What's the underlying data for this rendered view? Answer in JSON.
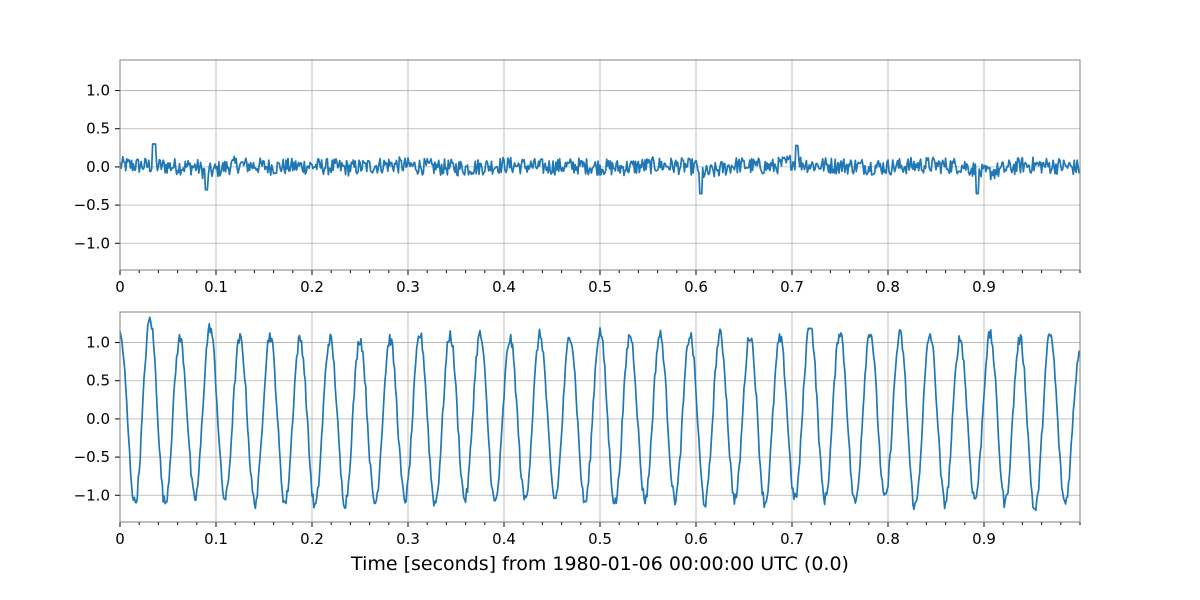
{
  "chart_data": [
    {
      "type": "line",
      "title": "",
      "xlabel": "",
      "ylabel": "",
      "xlim": [
        0,
        1.0
      ],
      "ylim": [
        -1.35,
        1.4
      ],
      "grid": true,
      "xticks": [
        0,
        0.1,
        0.2,
        0.3,
        0.4,
        0.5,
        0.6,
        0.7,
        0.8,
        0.9
      ],
      "xtick_labels": [
        "0",
        "0.1",
        "0.2",
        "0.3",
        "0.4",
        "0.5",
        "0.6",
        "0.7",
        "0.8",
        "0.9"
      ],
      "yticks": [
        -1.0,
        -0.5,
        0.0,
        0.5,
        1.0
      ],
      "ytick_labels": [
        "−1.0",
        "−0.5",
        "0.0",
        "0.5",
        "1.0"
      ],
      "series": [
        {
          "color": "#1f77b4",
          "x": [
            0,
            0.04,
            0.08,
            0.09,
            0.12,
            0.16,
            0.2,
            0.24,
            0.28,
            0.32,
            0.36,
            0.4,
            0.44,
            0.48,
            0.52,
            0.56,
            0.6,
            0.61,
            0.64,
            0.68,
            0.7,
            0.72,
            0.76,
            0.8,
            0.84,
            0.88,
            0.9,
            0.94,
            0.98,
            1.0
          ],
          "y": [
            0.1,
            0.05,
            0.0,
            -0.3,
            0.12,
            0.0,
            0.05,
            -0.05,
            0.12,
            0.0,
            -0.05,
            0.1,
            0.0,
            0.05,
            -0.05,
            0.1,
            0.0,
            -0.35,
            0.1,
            0.0,
            0.28,
            0.1,
            0.05,
            0.0,
            0.1,
            0.05,
            -0.35,
            0.1,
            0.05,
            -0.05
          ]
        }
      ]
    },
    {
      "type": "line",
      "title": "",
      "xlabel": "Time [seconds] from 1980-01-06 00:00:00 UTC (0.0)",
      "ylabel": "",
      "xlim": [
        0,
        1.0
      ],
      "ylim": [
        -1.35,
        1.4
      ],
      "grid": true,
      "xticks": [
        0,
        0.1,
        0.2,
        0.3,
        0.4,
        0.5,
        0.6,
        0.7,
        0.8,
        0.9
      ],
      "xtick_labels": [
        "0",
        "0.1",
        "0.2",
        "0.3",
        "0.4",
        "0.5",
        "0.6",
        "0.7",
        "0.8",
        "0.9"
      ],
      "yticks": [
        -1.0,
        -0.5,
        0.0,
        0.5,
        1.0
      ],
      "ytick_labels": [
        "−1.0",
        "−0.5",
        "0.0",
        "0.5",
        "1.0"
      ],
      "series": [
        {
          "color": "#1f77b4",
          "x": [
            0,
            0.0156,
            0.0313,
            0.0469,
            0.0625,
            0.0781,
            0.0938,
            0.1094,
            0.125,
            0.1406,
            0.1563,
            0.1719,
            0.1875,
            0.2031,
            0.2188,
            0.2344,
            0.25,
            0.2656,
            0.2813,
            0.2969,
            0.3125,
            0.3281,
            0.3438,
            0.3594,
            0.375,
            0.3906,
            0.4063,
            0.4219,
            0.4375,
            0.4531,
            0.4688,
            0.4844,
            0.5,
            0.5156,
            0.5313,
            0.5469,
            0.5625,
            0.5781,
            0.5938,
            0.6094,
            0.625,
            0.6406,
            0.6563,
            0.6719,
            0.6875,
            0.7031,
            0.7188,
            0.7344,
            0.75,
            0.7656,
            0.7813,
            0.7969,
            0.8125,
            0.8281,
            0.8438,
            0.8594,
            0.875,
            0.8906,
            0.9063,
            0.9219,
            0.9375,
            0.9531,
            0.9688,
            0.9844,
            1.0
          ],
          "y": [
            1.1,
            -1.1,
            1.3,
            -1.1,
            1.05,
            -1.05,
            1.2,
            -1.05,
            1.05,
            -1.1,
            1.1,
            -1.1,
            1.05,
            -1.15,
            1.05,
            -1.1,
            1.05,
            -1.1,
            1.05,
            -1.05,
            1.1,
            -1.1,
            1.1,
            -1.05,
            1.1,
            -1.1,
            1.05,
            -1.05,
            1.1,
            -1.05,
            1.1,
            -1.1,
            1.15,
            -1.1,
            1.1,
            -1.05,
            1.1,
            -1.05,
            1.1,
            -1.1,
            1.1,
            -1.05,
            1.1,
            -1.1,
            1.05,
            -1.05,
            1.25,
            -1.05,
            1.15,
            -1.1,
            1.15,
            -1.05,
            1.1,
            -1.15,
            1.1,
            -1.1,
            1.05,
            -1.05,
            1.1,
            -1.1,
            1.05,
            -1.2,
            1.1,
            -1.1,
            0.9
          ]
        }
      ]
    }
  ]
}
